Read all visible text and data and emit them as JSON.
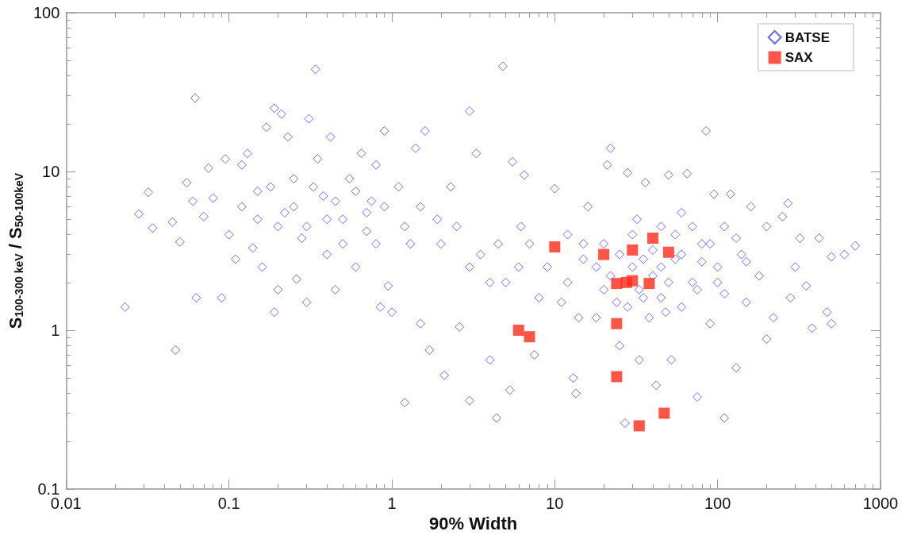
{
  "chart_data": {
    "type": "scatter",
    "xlabel": "90% Width",
    "ylabel": "S$_{100-300 keV}$ / S$_{50-100keV}$",
    "log": "xy",
    "grid": false,
    "legend": "top right",
    "xlim": [
      0.01,
      1000
    ],
    "xticks": [
      0.01,
      0.1,
      1,
      10,
      100,
      1000
    ],
    "ylim": [
      0.1,
      100
    ],
    "yticks": [
      0.1,
      1,
      10,
      100
    ],
    "series": [
      {
        "name": "BATSE",
        "color": "#4444ff",
        "marker": "diamond",
        "x": [
          0.023,
          0.028,
          0.032,
          0.034,
          0.045,
          0.047,
          0.05,
          0.055,
          0.06,
          0.062,
          0.063,
          0.07,
          0.075,
          0.08,
          0.09,
          0.095,
          0.1,
          0.11,
          0.12,
          0.13,
          0.14,
          0.15,
          0.16,
          0.17,
          0.19,
          0.19,
          0.2,
          0.21,
          0.22,
          0.23,
          0.25,
          0.26,
          0.28,
          0.3,
          0.31,
          0.34,
          0.35,
          0.38,
          0.4,
          0.42,
          0.45,
          0.5,
          0.55,
          0.6,
          0.65,
          0.7,
          0.75,
          0.8,
          0.85,
          0.9,
          0.95,
          1.0,
          1.1,
          1.2,
          1.3,
          1.4,
          1.5,
          1.6,
          1.7,
          1.9,
          2.1,
          2.3,
          2.6,
          3.0,
          3.0,
          3.3,
          3.5,
          4.0,
          4.4,
          4.8,
          5,
          5.3,
          5.5,
          6.2,
          6.5,
          7.5,
          8,
          9,
          0.12,
          0.15,
          0.18,
          0.2,
          0.25,
          0.3,
          0.33,
          0.4,
          0.45,
          0.5,
          0.6,
          0.7,
          0.8,
          0.9,
          1.2,
          1.5,
          2,
          2.5,
          3,
          4,
          4.5,
          6,
          7,
          10,
          11,
          12,
          13,
          13.5,
          15,
          16,
          18,
          20,
          21,
          22,
          24,
          25,
          27,
          28,
          30,
          32,
          33,
          35,
          36,
          40,
          42,
          45,
          48,
          50,
          52,
          55,
          60,
          65,
          70,
          75,
          80,
          85,
          90,
          95,
          100,
          110,
          110,
          120,
          130,
          140,
          150,
          160,
          180,
          200,
          200,
          220,
          250,
          270,
          280,
          300,
          320,
          350,
          380,
          420,
          470,
          500,
          500,
          600,
          700,
          15,
          18,
          25,
          30,
          35,
          40,
          45,
          50,
          55,
          60,
          70,
          80,
          90,
          100,
          130,
          150,
          12,
          14,
          20,
          22,
          28,
          33,
          38,
          45,
          60,
          75,
          110
        ],
        "values": [
          1.4,
          5.4,
          7.4,
          4.4,
          4.8,
          0.75,
          3.6,
          8.5,
          6.5,
          29,
          1.6,
          5.2,
          10.5,
          6.8,
          1.6,
          12,
          4,
          2.8,
          11,
          13,
          3.3,
          7.5,
          2.5,
          19,
          25,
          1.3,
          1.8,
          23,
          5.5,
          16.5,
          9,
          2.1,
          3.8,
          1.5,
          21.5,
          44,
          12,
          7,
          3,
          16.5,
          1.8,
          5,
          9,
          2.5,
          13,
          4.2,
          6.5,
          11,
          1.4,
          18,
          1.9,
          1.3,
          8,
          0.35,
          3.5,
          14,
          1.1,
          18,
          0.75,
          5,
          0.52,
          8,
          1.05,
          0.36,
          24,
          13,
          3,
          0.65,
          0.28,
          46,
          2,
          0.42,
          11.5,
          4.5,
          9.5,
          0.7,
          1.6,
          2.5,
          6,
          5,
          8,
          4.5,
          6,
          4.5,
          8,
          5,
          6.5,
          3.5,
          7.5,
          5.5,
          3.5,
          6,
          4.5,
          6,
          3.5,
          4.5,
          2.5,
          2,
          3.5,
          2.5,
          3.5,
          7.8,
          1.5,
          4,
          0.5,
          0.4,
          2.8,
          6,
          1.2,
          3.5,
          11,
          14,
          1.5,
          0.8,
          0.26,
          9.8,
          2.5,
          5,
          0.65,
          1.6,
          8.5,
          2.2,
          0.45,
          4.5,
          1.3,
          9.5,
          0.65,
          2.8,
          5.5,
          9.7,
          2,
          0.38,
          3.5,
          18,
          1.1,
          7.2,
          2.5,
          0.28,
          4.5,
          7.2,
          0.58,
          3,
          1.5,
          6,
          2.2,
          4.5,
          0.88,
          1.2,
          5.2,
          6.3,
          1.6,
          2.5,
          3.8,
          1.9,
          1.03,
          3.8,
          1.3,
          1.1,
          2.9,
          3,
          3.4,
          3.5,
          2.5,
          3,
          4,
          2.8,
          3.2,
          2.5,
          2,
          4,
          3,
          4.5,
          2.7,
          3.5,
          2,
          3.8,
          2.7,
          2,
          1.2,
          1.8,
          2.2,
          1.4,
          1.8,
          1.2,
          1.6,
          1.4,
          1.8,
          1.7
        ]
      },
      {
        "name": "SAX",
        "color": "#ff2a1a",
        "marker": "square",
        "x": [
          6,
          7,
          10,
          20,
          30,
          40,
          50,
          24,
          27.6,
          30,
          38,
          24,
          24,
          33,
          47
        ],
        "values": [
          1.0,
          0.91,
          3.35,
          3.0,
          3.2,
          3.8,
          3.1,
          1.97,
          2.0,
          2.05,
          1.97,
          1.1,
          0.51,
          0.25,
          0.3
        ]
      }
    ]
  }
}
